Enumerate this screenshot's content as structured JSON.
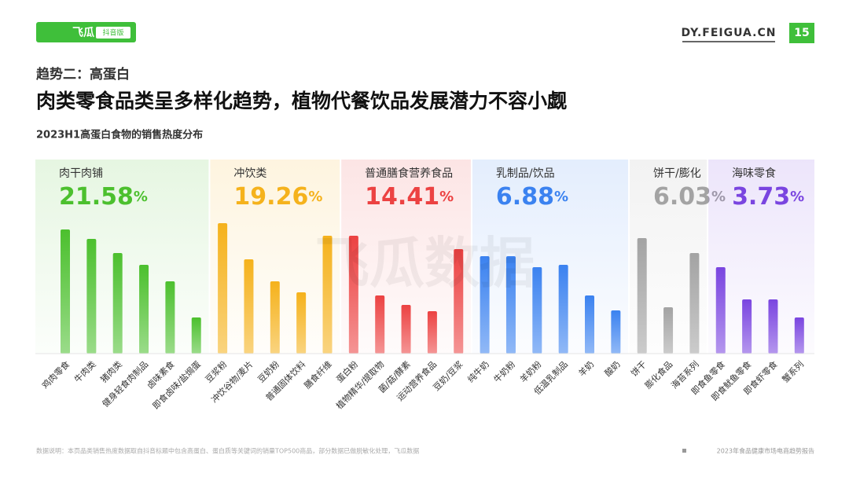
{
  "header": {
    "logo": "飞瓜",
    "logo_tag": "抖音版",
    "site": "DY.FEIGUA.CN",
    "page": "15"
  },
  "section": "趋势二：高蛋白",
  "title": "肉类零食品类呈多样化趋势，植物代餐饮品发展潜力不容小觑",
  "watermark": "飞瓜数据",
  "chart_data": {
    "type": "bar",
    "title": "2023H1高蛋白食物的销售热度分布",
    "groups": [
      {
        "name": "肉干肉铺",
        "share": 21.58,
        "unit": "%",
        "color": "#4cc02e",
        "categories": [
          "鸡肉零食",
          "牛肉类",
          "猪肉类",
          "健身轻食肉制品",
          "卤味素食",
          "即食卤味/盐焗蛋"
        ],
        "values": [
          158,
          146,
          128,
          113,
          92,
          46
        ]
      },
      {
        "name": "冲饮类",
        "share": 19.26,
        "unit": "%",
        "color": "#f5b21c",
        "categories": [
          "豆浆粉",
          "冲饮谷物/麦片",
          "豆奶粉",
          "普通固体饮料",
          "膳食纤维"
        ],
        "values": [
          166,
          120,
          92,
          78,
          150
        ]
      },
      {
        "name": "普通膳食营养食品",
        "share": 14.41,
        "unit": "%",
        "color": "#ec4242",
        "categories": [
          "蛋白粉",
          "植物精华/提取物",
          "菌/菇/酵素",
          "运动营养食品",
          "豆奶/豆浆"
        ],
        "values": [
          150,
          74,
          62,
          54,
          133
        ]
      },
      {
        "name": "乳制品/饮品",
        "share": 6.88,
        "unit": "%",
        "color": "#3b82f0",
        "categories": [
          "纯牛奶",
          "牛奶粉",
          "羊奶粉",
          "低温乳制品",
          "羊奶",
          "酸奶"
        ],
        "values": [
          124,
          124,
          110,
          113,
          74,
          55
        ]
      },
      {
        "name": "饼干/膨化",
        "share": 6.03,
        "unit": "%",
        "color": "#a3a3a3",
        "categories": [
          "饼干",
          "膨化食品",
          "海苔系列"
        ],
        "values": [
          147,
          59,
          128
        ]
      },
      {
        "name": "海味零食",
        "share": 3.73,
        "unit": "%",
        "color": "#7a45e0",
        "categories": [
          "即食鱼零食",
          "即食鱿鱼零食",
          "即食虾零食",
          "蟹系列"
        ],
        "values": [
          110,
          69,
          69,
          46
        ]
      }
    ]
  },
  "footer": {
    "note": "数据说明：本页品类销售热度数据取自抖音标题中包含高蛋白、蛋白质等关键词的销量TOP500商品，部分数据已做脱敏化处理，飞瓜数据",
    "report": "2023年食品健康市场电商趋势报告"
  }
}
